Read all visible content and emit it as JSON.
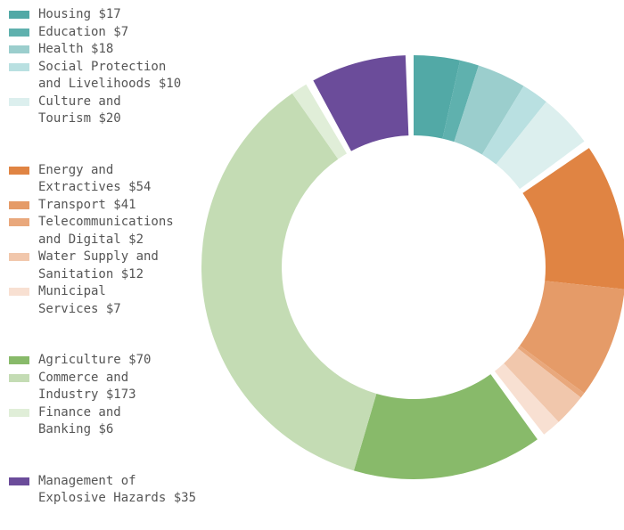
{
  "chart_data": {
    "type": "donut",
    "groups": [
      {
        "categories": [
          "Housing",
          "Education",
          "Health",
          "Social Protection\nand Livelihoods",
          "Culture and\nTourism"
        ],
        "values": [
          17,
          7,
          18,
          10,
          20
        ],
        "value_labels": [
          "$17",
          "$7",
          "$18",
          "$10",
          "$20"
        ],
        "colors": [
          "#52a9a6",
          "#5fb1ae",
          "#9bcecd",
          "#b9e0e1",
          "#dcefee"
        ]
      },
      {
        "categories": [
          "Energy and\nExtractives",
          "Transport",
          "Telecommunications\nand Digital",
          "Water Supply and\nSanitation",
          "Municipal\nServices"
        ],
        "values": [
          54,
          41,
          2,
          12,
          7
        ],
        "value_labels": [
          "$54",
          "$41",
          "$2",
          "$12",
          "$7"
        ],
        "colors": [
          "#e08443",
          "#e59b68",
          "#e9a87c",
          "#f1c7ac",
          "#f8e0d2"
        ]
      },
      {
        "categories": [
          "Agriculture",
          "Commerce and\nIndustry",
          "Finance and\nBanking"
        ],
        "values": [
          70,
          173,
          6
        ],
        "value_labels": [
          "$70",
          "$173",
          "$6"
        ],
        "colors": [
          "#88ba6a",
          "#c4dcb4",
          "#e0eed8"
        ]
      },
      {
        "categories": [
          "Management of\nExplosive Hazards"
        ],
        "values": [
          35
        ],
        "value_labels": [
          "$35"
        ],
        "colors": [
          "#6b4c9a"
        ]
      }
    ]
  }
}
